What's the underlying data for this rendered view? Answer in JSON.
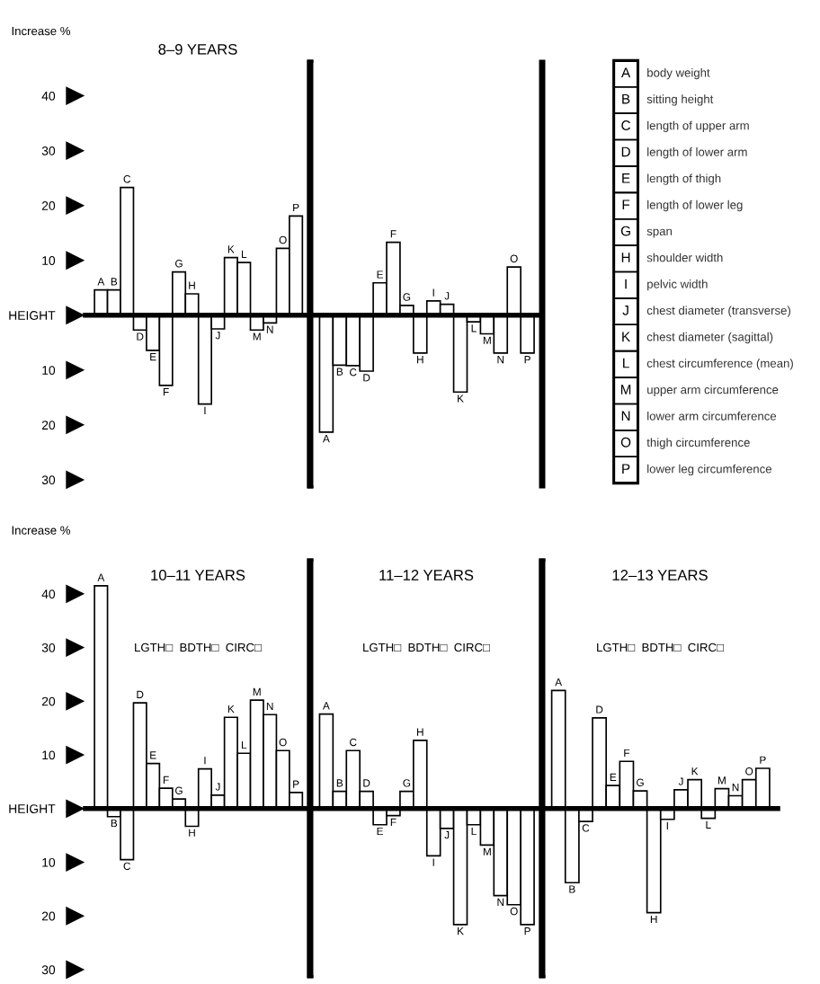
{
  "chart_data": [
    {
      "type": "bar",
      "title": "8–9 YEARS",
      "ylabel": "Increase %",
      "categories": [
        "A",
        "B",
        "C",
        "D",
        "E",
        "F",
        "G",
        "H",
        "I",
        "J",
        "K",
        "L",
        "M",
        "N",
        "O",
        "P"
      ],
      "values": [
        4.6,
        4.6,
        23.3,
        -2.7,
        -6.4,
        -12.8,
        7.9,
        3.9,
        -16.2,
        -2.5,
        10.5,
        9.6,
        -2.7,
        -1.4,
        12.2,
        18.1
      ],
      "color": "#ffffff",
      "ylim": [
        -31,
        46
      ],
      "yticks": [
        40,
        30,
        20,
        10,
        {
          "value": 0,
          "label": "HEIGHT"
        },
        {
          "value": -10,
          "label": "10"
        },
        {
          "value": -20,
          "label": "20"
        },
        {
          "value": -30,
          "label": "30"
        }
      ]
    },
    {
      "type": "bar",
      "categories": [
        "A",
        "B",
        "C",
        "D",
        "E",
        "F",
        "G",
        "H",
        "I",
        "J",
        "K",
        "L",
        "M",
        "N",
        "O",
        "P"
      ],
      "values": [
        -21.3,
        -9.1,
        -9.2,
        -10.2,
        5.9,
        13.3,
        1.8,
        -6.9,
        2.6,
        2.0,
        -14.0,
        -1.2,
        -3.4,
        -6.9,
        8.8,
        -6.9
      ],
      "color": "#ffffff",
      "ylim": [
        -31,
        46
      ],
      "tick_labels": "x"
    },
    {
      "type": "other",
      "categories": [
        "A",
        "B",
        "C",
        "D",
        "E",
        "F",
        "G",
        "H",
        "I",
        "J",
        "K",
        "L",
        "M",
        "N",
        "O",
        "P"
      ],
      "annotations": [
        "body weight",
        "sitting height",
        "length of upper arm",
        "length of lower arm",
        "length of thigh",
        "length of lower leg",
        "span",
        "shoulder width",
        "pelvic width",
        "chest diameter (transverse)",
        "chest diameter (sagittal)",
        "chest circumference (mean)",
        "upper arm circumference",
        "lower arm circumference",
        "thigh circumference",
        "lower leg circumference"
      ]
    },
    {
      "type": "bar",
      "title": "10–11 YEARS",
      "ylabel": "Increase %",
      "annotations": [
        "LGTH□  BDTH□  CIRC□"
      ],
      "categories": [
        "A",
        "B",
        "C",
        "D",
        "E",
        "F",
        "G",
        "H",
        "I",
        "J",
        "K",
        "L",
        "M",
        "N",
        "O",
        "P"
      ],
      "values": [
        41.5,
        -1.5,
        -9.5,
        19.7,
        8.4,
        3.8,
        1.8,
        -3.3,
        7.4,
        2.5,
        17.0,
        10.3,
        20.2,
        17.5,
        10.8,
        3.0
      ],
      "color": "#ffffff",
      "ylim": [
        -31,
        46
      ],
      "yticks": [
        40,
        30,
        20,
        10,
        {
          "value": 0,
          "label": "HEIGHT"
        },
        {
          "value": -10,
          "label": "10"
        },
        {
          "value": -20,
          "label": "20"
        },
        {
          "value": -30,
          "label": "30"
        }
      ]
    },
    {
      "type": "bar",
      "title": "11–12 YEARS",
      "annotations": [
        "LGTH□  BDTH□  CIRC□"
      ],
      "categories": [
        "A",
        "B",
        "C",
        "D",
        "E",
        "F",
        "G",
        "H",
        "I",
        "J",
        "K",
        "L",
        "M",
        "N",
        "O",
        "P"
      ],
      "values": [
        17.6,
        3.2,
        10.8,
        3.2,
        -3.0,
        -1.3,
        3.2,
        12.7,
        -8.8,
        -3.7,
        -21.6,
        -3.0,
        -6.8,
        -16.2,
        -17.9,
        -21.6
      ],
      "color": "#ffffff",
      "ylim": [
        -31,
        46
      ],
      "tick_labels": "x"
    },
    {
      "type": "bar",
      "title": "12–13 YEARS",
      "annotations": [
        "LGTH□  BDTH□  CIRC□"
      ],
      "categories": [
        "A",
        "B",
        "C",
        "D",
        "E",
        "F",
        "G",
        "H",
        "I",
        "J",
        "K",
        "L",
        "M",
        "N",
        "O",
        "P"
      ],
      "values": [
        22.0,
        -13.8,
        -2.4,
        16.9,
        4.3,
        8.8,
        3.3,
        -19.4,
        -2.0,
        3.5,
        5.4,
        -1.8,
        3.7,
        2.4,
        5.4,
        7.5
      ],
      "color": "#ffffff",
      "ylim": [
        -31,
        46
      ],
      "tick_labels": "x"
    }
  ]
}
